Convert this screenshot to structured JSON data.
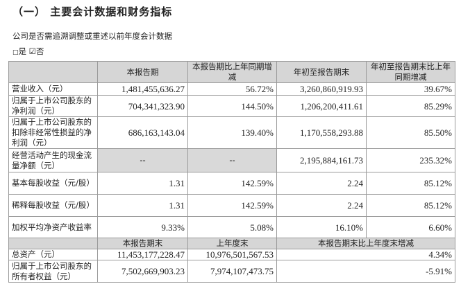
{
  "section_title": "（一） 主要会计数据和财务指标",
  "question": "公司是否需追溯调整或重述以前年度会计数据",
  "choice": {
    "yes_box": "□",
    "yes": "是",
    "no_box": "☑",
    "no": "否"
  },
  "table": {
    "headers": [
      "",
      "本报告期",
      "本报告期比上年同期增减",
      "年初至报告期末",
      "年初至报告期末比上年同期增减"
    ],
    "rows": [
      [
        "营业收入（元）",
        "1,481,455,636.27",
        "56.72%",
        "3,260,860,919.93",
        "39.67%"
      ],
      [
        "归属于上市公司股东的净利润（元）",
        "704,341,323.90",
        "144.50%",
        "1,206,200,411.61",
        "85.29%"
      ],
      [
        "归属于上市公司股东的扣除非经常性损益的净利润（元）",
        "686,163,143.04",
        "139.40%",
        "1,170,558,293.88",
        "85.50%"
      ],
      [
        "经营活动产生的现金流量净额（元）",
        "--",
        "--",
        "2,195,884,161.73",
        "235.32%"
      ],
      [
        "基本每股收益（元/股）",
        "1.31",
        "142.59%",
        "2.24",
        "85.12%"
      ],
      [
        "稀释每股收益（元/股）",
        "1.31",
        "142.59%",
        "2.24",
        "85.12%"
      ],
      [
        "加权平均净资产收益率",
        "9.33%",
        "5.08%",
        "16.10%",
        "6.60%"
      ]
    ],
    "sub_headers": [
      "",
      "本报告期末",
      "上年度末",
      "本报告期末比上年度末增减"
    ],
    "sub_rows": [
      [
        "总资产（元）",
        "11,453,177,228.47",
        "10,976,501,567.53",
        "4.34%"
      ],
      [
        "归属于上市公司股东的所有者权益（元）",
        "7,502,669,903.23",
        "7,974,107,473.75",
        "-5.91%"
      ]
    ]
  }
}
